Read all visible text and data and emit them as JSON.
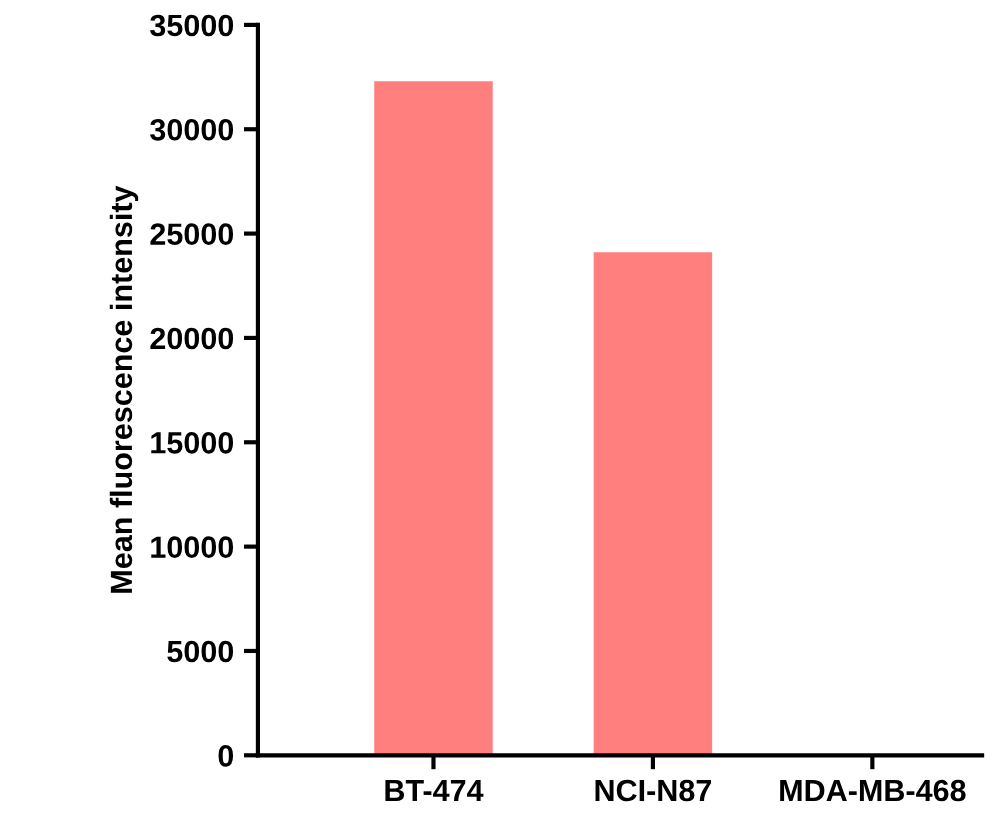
{
  "chart_data": {
    "type": "bar",
    "ylabel": "Mean fluorescence intensity",
    "categories": [
      "BT-474",
      "NCI-N87",
      "MDA-MB-468"
    ],
    "values": [
      32300,
      24100,
      0
    ],
    "color": "#ff7f7f",
    "ylim": [
      0,
      35000
    ],
    "yticks": [
      0,
      5000,
      10000,
      15000,
      20000,
      25000,
      30000,
      35000
    ],
    "grid": false,
    "legend": false
  }
}
